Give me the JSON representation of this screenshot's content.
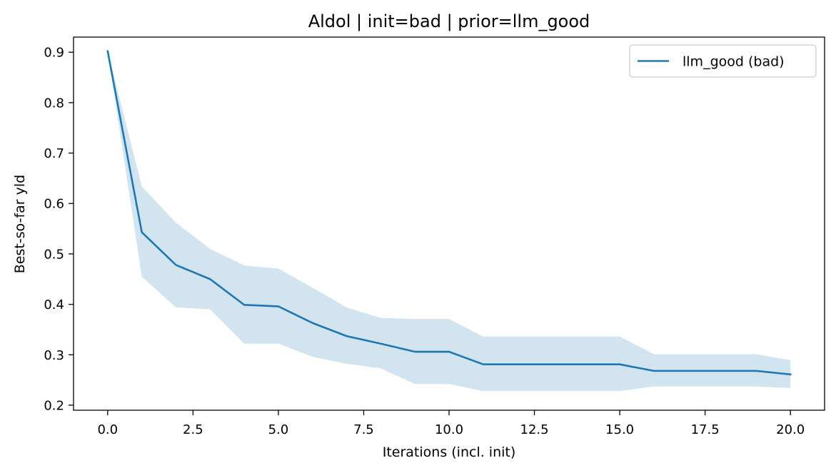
{
  "chart_data": {
    "type": "line",
    "title": "Aldol | init=bad | prior=llm_good",
    "xlabel": "Iterations (incl. init)",
    "ylabel": "Best-so-far yld",
    "xlim": [
      -1.0,
      21.0
    ],
    "ylim": [
      0.19,
      0.93
    ],
    "xticks": [
      0.0,
      2.5,
      5.0,
      7.5,
      10.0,
      12.5,
      15.0,
      17.5,
      20.0
    ],
    "xtick_labels": [
      "0.0",
      "2.5",
      "5.0",
      "7.5",
      "10.0",
      "12.5",
      "15.0",
      "17.5",
      "20.0"
    ],
    "yticks": [
      0.2,
      0.3,
      0.4,
      0.5,
      0.6,
      0.7,
      0.8,
      0.9
    ],
    "ytick_labels": [
      "0.2",
      "0.3",
      "0.4",
      "0.5",
      "0.6",
      "0.7",
      "0.8",
      "0.9"
    ],
    "grid": false,
    "legend_position": "top-right",
    "series": [
      {
        "name": "llm_good (bad)",
        "color": "#1f77b4",
        "band_color": "#1f77b4",
        "x": [
          0,
          1,
          2,
          3,
          4,
          5,
          6,
          7,
          8,
          9,
          10,
          11,
          12,
          13,
          14,
          15,
          16,
          17,
          18,
          19,
          20
        ],
        "y": [
          0.902,
          0.543,
          0.478,
          0.45,
          0.399,
          0.396,
          0.363,
          0.337,
          0.322,
          0.306,
          0.306,
          0.281,
          0.281,
          0.281,
          0.281,
          0.281,
          0.268,
          0.268,
          0.268,
          0.268,
          0.261
        ],
        "y_lower": [
          0.902,
          0.455,
          0.394,
          0.39,
          0.322,
          0.322,
          0.296,
          0.282,
          0.273,
          0.242,
          0.242,
          0.228,
          0.228,
          0.228,
          0.228,
          0.228,
          0.237,
          0.237,
          0.237,
          0.237,
          0.234
        ],
        "y_upper": [
          0.902,
          0.634,
          0.562,
          0.51,
          0.477,
          0.471,
          0.433,
          0.394,
          0.373,
          0.371,
          0.371,
          0.336,
          0.336,
          0.336,
          0.336,
          0.336,
          0.301,
          0.301,
          0.301,
          0.301,
          0.289
        ]
      }
    ]
  }
}
